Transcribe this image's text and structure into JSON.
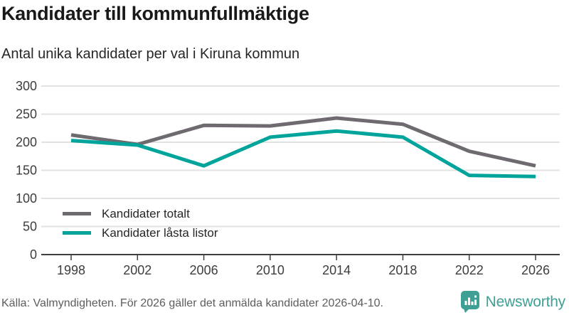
{
  "header": {
    "title": "Kandidater till kommunfullmäktige",
    "subtitle": "Antal unika kandidater per val i Kiruna kommun"
  },
  "chart_data": {
    "type": "line",
    "title": "Kandidater till kommunfullmäktige",
    "subtitle": "Antal unika kandidater per val i Kiruna kommun",
    "categories": [
      "1998",
      "2002",
      "2006",
      "2010",
      "2014",
      "2018",
      "2022",
      "2026"
    ],
    "series": [
      {
        "name": "Kandidater totalt",
        "color": "#6e6a70",
        "values": [
          213,
          196,
          230,
          229,
          243,
          232,
          184,
          158
        ]
      },
      {
        "name": "Kandidater låsta listor",
        "color": "#00a49a",
        "values": [
          203,
          195,
          158,
          209,
          220,
          209,
          141,
          139
        ]
      }
    ],
    "ylim": [
      0,
      300
    ],
    "yticks": [
      0,
      50,
      100,
      150,
      200,
      250,
      300
    ],
    "xlabel": "",
    "ylabel": "",
    "grid": "horizontal",
    "legend_position": "inside-bottom-left"
  },
  "legend": {
    "items": [
      {
        "label": "Kandidater totalt"
      },
      {
        "label": "Kandidater låsta listor"
      }
    ]
  },
  "footer": {
    "source": "Källa: Valmyndigheten. För 2026 gäller det anmälda kandidater 2026-04-10.",
    "brand": "Newsworthy"
  },
  "colors": {
    "total_line": "#6e6a70",
    "locked_line": "#00a49a",
    "brand_teal": "#3f9f95",
    "grid": "#e2e2e2",
    "axis": "#3f3f3f"
  }
}
